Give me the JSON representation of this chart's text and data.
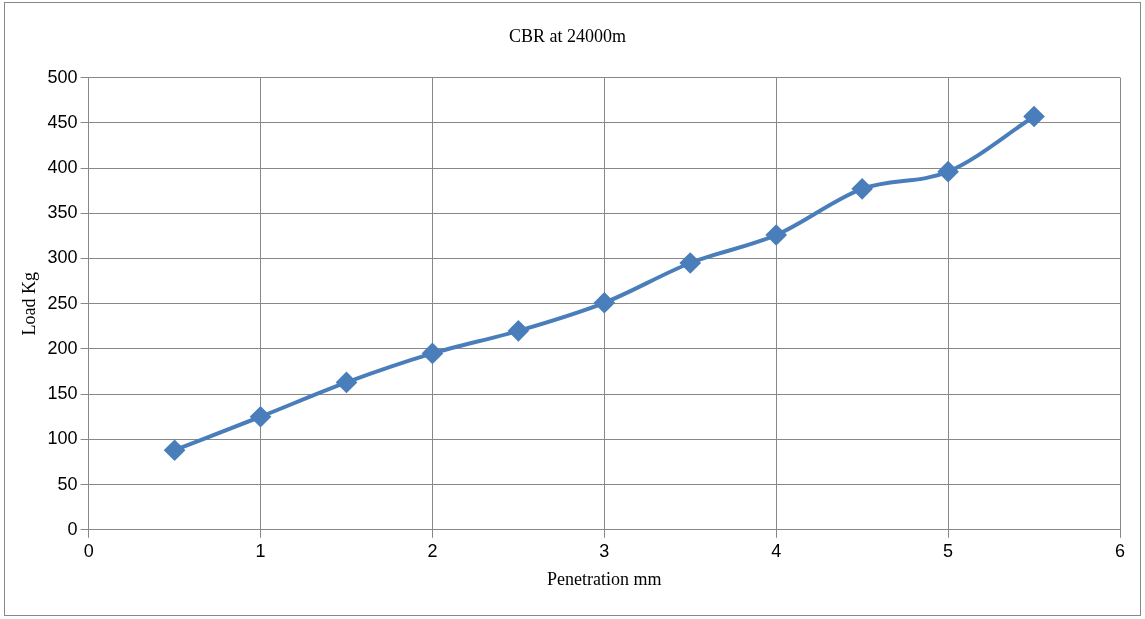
{
  "chart_data": {
    "type": "line",
    "title": "CBR at 24000m",
    "xlabel": "Penetration mm",
    "ylabel": "Load Kg",
    "x": [
      0.5,
      1,
      1.5,
      2,
      2.5,
      3,
      3.5,
      4,
      4.5,
      5,
      5.5
    ],
    "series": [
      {
        "color": "#4a7ebb",
        "values": [
          88,
          125,
          163,
          195,
          220,
          251,
          295,
          326,
          377,
          396,
          457
        ]
      }
    ],
    "xlim": [
      0,
      6
    ],
    "xticks": [
      0,
      1,
      2,
      3,
      4,
      5,
      6
    ],
    "ylim": [
      0,
      500
    ],
    "yticks": [
      0,
      50,
      100,
      150,
      200,
      250,
      300,
      350,
      400,
      450,
      500
    ],
    "grid": true,
    "marker": "diamond",
    "line_style": "solid",
    "legend": false
  }
}
